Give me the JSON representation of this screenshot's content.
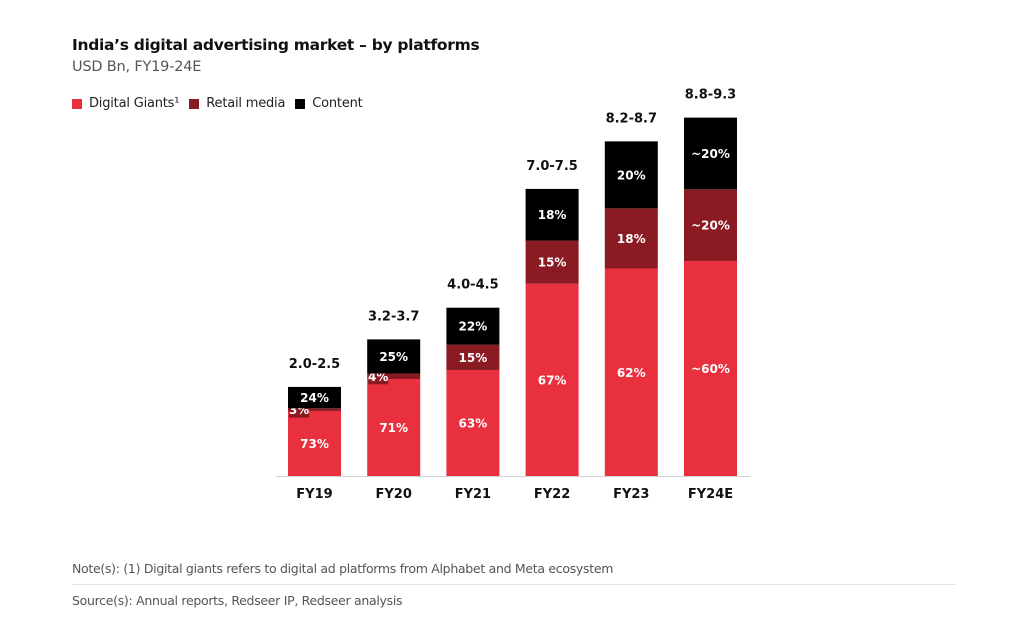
{
  "chart_data": {
    "type": "bar",
    "stacked": true,
    "title": "India’s digital advertising market – by platforms",
    "subtitle": "USD Bn, FY19-24E",
    "legend_position": "top-left",
    "grid": false,
    "categories": [
      "FY19",
      "FY20",
      "FY21",
      "FY22",
      "FY23",
      "FY24E"
    ],
    "totals": [
      {
        "label": "2.0-2.5",
        "range": [
          2.0,
          2.5
        ]
      },
      {
        "label": "3.2-3.7",
        "range": [
          3.2,
          3.7
        ]
      },
      {
        "label": "4.0-4.5",
        "range": [
          4.0,
          4.5
        ]
      },
      {
        "label": "7.0-7.5",
        "range": [
          7.0,
          7.5
        ]
      },
      {
        "label": "8.2-8.7",
        "range": [
          8.2,
          8.7
        ]
      },
      {
        "label": "8.8-9.3",
        "range": [
          8.8,
          9.3
        ]
      }
    ],
    "series": [
      {
        "name": "Digital Giants¹",
        "color": "#E8303E",
        "values": [
          73,
          71,
          63,
          67,
          62,
          60
        ],
        "labels": [
          "73%",
          "71%",
          "63%",
          "67%",
          "62%",
          "~60%"
        ]
      },
      {
        "name": "Retail media",
        "color": "#8A1B22",
        "values": [
          3,
          4,
          15,
          15,
          18,
          20
        ],
        "labels": [
          "3%",
          "4%",
          "15%",
          "15%",
          "18%",
          "~20%"
        ]
      },
      {
        "name": "Content",
        "color": "#000000",
        "values": [
          24,
          25,
          22,
          18,
          20,
          20
        ],
        "labels": [
          "24%",
          "25%",
          "22%",
          "18%",
          "20%",
          "~20%"
        ]
      }
    ]
  },
  "footer": {
    "note": "Note(s): (1) Digital giants refers to digital ad platforms from Alphabet and Meta ecosystem",
    "source": "Source(s): Annual reports, Redseer IP, Redseer analysis"
  }
}
